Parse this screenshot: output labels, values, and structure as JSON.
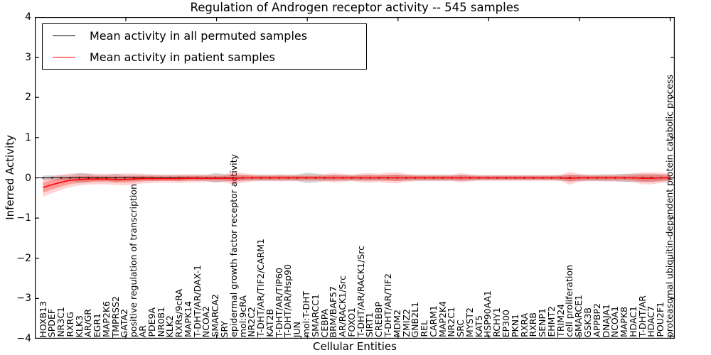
{
  "figure": {
    "title": "Regulation of Androgen receptor activity -- 545 samples",
    "xlabel": "Cellular Entities",
    "ylabel": "Inferred Activity",
    "background": "#ffffff"
  },
  "legend": {
    "position": "upper left",
    "items": [
      {
        "label": "Mean activity in all permuted samples",
        "color": "#000000"
      },
      {
        "label": "Mean activity in patient samples",
        "color": "#ff0000"
      }
    ]
  },
  "axes": {
    "y_ticks": [
      "4",
      "3",
      "2",
      "1",
      "0",
      "−1",
      "−2",
      "−3",
      "−4"
    ],
    "y_range": [
      -4,
      4
    ],
    "frame_color": "#000000"
  },
  "chart_data": {
    "type": "line",
    "title": "Regulation of Androgen receptor activity -- 545 samples",
    "xlabel": "Cellular Entities",
    "ylabel": "Inferred Activity",
    "ylim": [
      -4,
      4
    ],
    "grid": false,
    "legend_position": "upper left",
    "categories": [
      "HOXB13",
      "SPDEF",
      "NR3C1",
      "RXRG",
      "KLK3",
      "AR/GR",
      "EGR1",
      "MAP2K6",
      "TMPRSS2",
      "GATA2",
      "positive regulation of transcription",
      "AR",
      "PDE9A",
      "NR0B1",
      "KLK2",
      "RXRs/9cRA",
      "MAPK14",
      "T-DHT/AR/DAX-1",
      "NCOA2",
      "SMARCA2",
      "SRY",
      "epidermal growth factor receptor activity",
      "mol:9cRA",
      "NR2C2",
      "T-DHT/AR/TIF2/CARM1",
      "KAT2B",
      "T-DHT/AR/TIP60",
      "T-DHT/AR/Hsp90",
      "JUN",
      "mol:T-DHT",
      "SMARCC1",
      "CEBPA",
      "BRM/BAF57",
      "AR/RACK1/Src",
      "FOXO1",
      "T-DHT/AR/RACK1/Src",
      "SIRT1",
      "CREBBP",
      "T-DHT/AR/TIF2",
      "MDM2",
      "ZMIZ2",
      "GNB2L1",
      "REL",
      "CARM1",
      "MAP2K4",
      "NR2C1",
      "SRC",
      "MYST2",
      "KAT5",
      "HSP90AA1",
      "RCHY1",
      "EP300",
      "PKN1",
      "RXRA",
      "RXRB",
      "SENP1",
      "EHMT2",
      "TRIM24",
      "cell proliferation",
      "SMARCE1",
      "GSK3B",
      "APPBP2",
      "DNAJA1",
      "NCOA1",
      "MAPK8",
      "HDAC1",
      "T-DHT/AR",
      "HDAC7",
      "POU2F1",
      "proteasomal ubiquitin-dependent protein catabolic process"
    ],
    "series": [
      {
        "name": "Mean activity in all permuted samples",
        "color": "#000000",
        "band_color": "#000000",
        "band_opacity": 0.16,
        "values": [
          0,
          0,
          0,
          0,
          0,
          0,
          0,
          0,
          0,
          0,
          0,
          0,
          0,
          0,
          0,
          0,
          0,
          0,
          0,
          0,
          0,
          0,
          0,
          0,
          0,
          0,
          0,
          0,
          0,
          0,
          0,
          0,
          0,
          0,
          0,
          0,
          0,
          0,
          0,
          0,
          0,
          0,
          0,
          0,
          0,
          0,
          0,
          0,
          0,
          0,
          0,
          0,
          0,
          0,
          0,
          0,
          0,
          0,
          0,
          0,
          0,
          0,
          0,
          0,
          0,
          0,
          0,
          0,
          0,
          0
        ],
        "band_halfwidth": [
          0.06,
          0.06,
          0.06,
          0.07,
          0.12,
          0.1,
          0.07,
          0.07,
          0.1,
          0.07,
          0.07,
          0.07,
          0.07,
          0.07,
          0.07,
          0.07,
          0.07,
          0.07,
          0.08,
          0.12,
          0.09,
          0.07,
          0.07,
          0.07,
          0.07,
          0.07,
          0.07,
          0.07,
          0.08,
          0.13,
          0.11,
          0.08,
          0.07,
          0.07,
          0.07,
          0.07,
          0.07,
          0.07,
          0.07,
          0.08,
          0.07,
          0.07,
          0.07,
          0.07,
          0.07,
          0.07,
          0.07,
          0.07,
          0.06,
          0.06,
          0.06,
          0.06,
          0.06,
          0.06,
          0.06,
          0.06,
          0.06,
          0.07,
          0.08,
          0.08,
          0.08,
          0.08,
          0.09,
          0.09,
          0.1,
          0.1,
          0.1,
          0.1,
          0.09,
          0.08
        ]
      },
      {
        "name": "Mean activity in patient samples",
        "color": "#ff0000",
        "band_color": "#ff0000",
        "band_opacity": 0.17,
        "values": [
          -0.24,
          -0.17,
          -0.11,
          -0.06,
          -0.04,
          -0.03,
          -0.03,
          -0.03,
          -0.04,
          -0.04,
          -0.03,
          -0.02,
          -0.02,
          -0.02,
          -0.02,
          -0.02,
          -0.01,
          -0.01,
          -0.01,
          -0.01,
          -0.01,
          -0.01,
          0,
          0,
          0,
          0,
          0,
          0,
          0,
          0,
          0,
          0,
          0,
          0,
          0,
          0,
          0,
          0,
          0,
          0,
          0,
          0,
          0,
          0,
          0,
          0,
          0,
          0,
          0,
          0,
          0,
          0,
          0,
          0,
          0,
          0,
          0,
          0,
          -0.01,
          0,
          0,
          0,
          0,
          0,
          0,
          0,
          -0.01,
          -0.01,
          0,
          0
        ],
        "band_halfwidth": [
          0.23,
          0.21,
          0.19,
          0.17,
          0.15,
          0.14,
          0.13,
          0.13,
          0.14,
          0.15,
          0.14,
          0.12,
          0.11,
          0.1,
          0.1,
          0.11,
          0.1,
          0.1,
          0.09,
          0.09,
          0.1,
          0.16,
          0.12,
          0.09,
          0.08,
          0.08,
          0.09,
          0.08,
          0.08,
          0.08,
          0.08,
          0.09,
          0.12,
          0.1,
          0.08,
          0.11,
          0.12,
          0.1,
          0.13,
          0.14,
          0.1,
          0.08,
          0.08,
          0.08,
          0.08,
          0.08,
          0.12,
          0.09,
          0.07,
          0.07,
          0.07,
          0.07,
          0.07,
          0.07,
          0.07,
          0.07,
          0.07,
          0.08,
          0.16,
          0.1,
          0.08,
          0.08,
          0.08,
          0.08,
          0.09,
          0.11,
          0.15,
          0.15,
          0.13,
          0.11
        ]
      }
    ]
  }
}
